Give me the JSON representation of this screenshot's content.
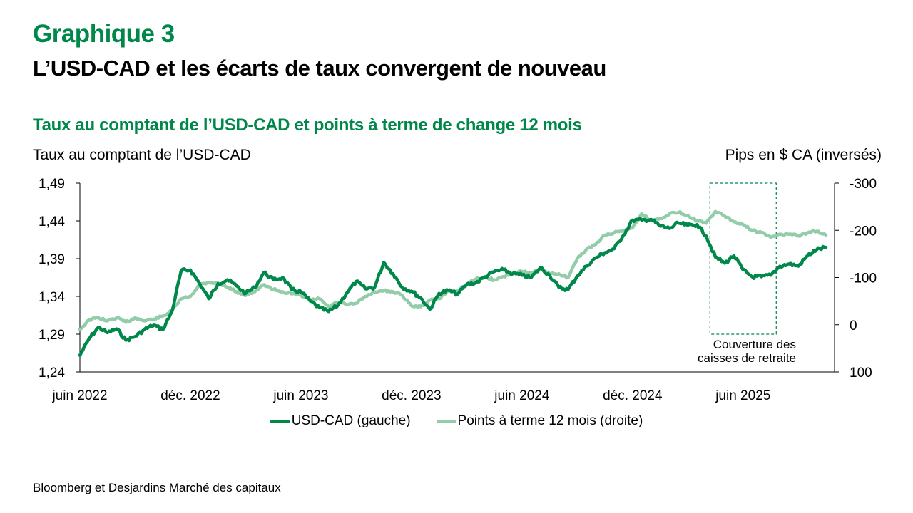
{
  "header": {
    "graph_number": "Graphique 3",
    "headline": "L’USD-CAD et les écarts de taux convergent de nouveau"
  },
  "source": "Bloomberg et Desjardins Marché des capitaux",
  "colors": {
    "title_green": "#00874a",
    "usdcad": "#00874a",
    "forward_points": "#92cca9",
    "annotation_box": "#00874a"
  },
  "chart_data": {
    "type": "line",
    "title": "Taux au comptant de l’USD-CAD et points à terme de change 12 mois",
    "ylabel": "Taux au comptant de l’USD-CAD",
    "ylabel_right": "Pips en $ CA (inversés)",
    "xlabel": "",
    "ylim": [
      1.24,
      1.49
    ],
    "ylim_right": [
      100,
      -300
    ],
    "right_axis_inverted": true,
    "yticks": [
      "1,49",
      "1,44",
      "1,39",
      "1,34",
      "1,29",
      "1,24"
    ],
    "yticks_values": [
      1.49,
      1.44,
      1.39,
      1.34,
      1.29,
      1.24
    ],
    "yticks_right": [
      "-300",
      "-200",
      "-100",
      "0",
      "100"
    ],
    "yticks_right_values": [
      -300,
      -200,
      -100,
      0,
      100
    ],
    "xticks": [
      "juin 2022",
      "déc. 2022",
      "juin 2023",
      "déc. 2023",
      "juin 2024",
      "déc. 2024",
      "juin 2025"
    ],
    "xticks_months": [
      0,
      6,
      12,
      18,
      24,
      30,
      36
    ],
    "x_unit": "months since June 2022",
    "x_range": [
      0,
      40.5
    ],
    "grid": false,
    "legend_position": "bottom",
    "annotation": {
      "text_line1": "Couverture des",
      "text_line2": "caisses de retraite",
      "x_start": 34.2,
      "x_end": 37.8,
      "y_top": 1.49,
      "y_bottom": 1.29
    },
    "x": [
      0,
      0.5,
      1,
      1.5,
      2,
      2.5,
      3,
      3.5,
      4,
      4.5,
      5,
      5.5,
      6,
      6.5,
      7,
      7.5,
      8,
      8.5,
      9,
      9.5,
      10,
      10.5,
      11,
      11.5,
      12,
      12.5,
      13,
      13.5,
      14,
      14.5,
      15,
      15.5,
      16,
      16.5,
      17,
      17.5,
      18,
      18.5,
      19,
      19.5,
      20,
      20.5,
      21,
      21.5,
      22,
      22.5,
      23,
      23.5,
      24,
      24.5,
      25,
      25.5,
      26,
      26.5,
      27,
      27.5,
      28,
      28.5,
      29,
      29.5,
      30,
      30.5,
      31,
      31.5,
      32,
      32.5,
      33,
      33.5,
      34,
      34.5,
      35,
      35.5,
      36,
      36.5,
      37,
      37.5,
      38,
      38.5,
      39,
      39.5,
      40,
      40.5
    ],
    "series": [
      {
        "name": "USD-CAD (gauche)",
        "axis": "left",
        "values": [
          1.262,
          1.284,
          1.299,
          1.292,
          1.297,
          1.282,
          1.287,
          1.296,
          1.302,
          1.296,
          1.32,
          1.374,
          1.375,
          1.357,
          1.337,
          1.357,
          1.362,
          1.354,
          1.344,
          1.352,
          1.372,
          1.362,
          1.365,
          1.349,
          1.346,
          1.334,
          1.325,
          1.32,
          1.328,
          1.345,
          1.36,
          1.35,
          1.352,
          1.385,
          1.37,
          1.352,
          1.347,
          1.338,
          1.323,
          1.344,
          1.348,
          1.343,
          1.356,
          1.358,
          1.366,
          1.373,
          1.375,
          1.37,
          1.368,
          1.365,
          1.378,
          1.368,
          1.352,
          1.349,
          1.367,
          1.38,
          1.391,
          1.398,
          1.403,
          1.421,
          1.441,
          1.441,
          1.442,
          1.433,
          1.43,
          1.437,
          1.434,
          1.435,
          1.42,
          1.392,
          1.384,
          1.394,
          1.375,
          1.366,
          1.366,
          1.368,
          1.38,
          1.383,
          1.38,
          1.394,
          1.402,
          1.405
        ]
      },
      {
        "name": "Points à terme 12 mois (droite)",
        "axis": "right",
        "values": [
          10,
          -10,
          -15,
          -8,
          -15,
          -5,
          -15,
          -8,
          -12,
          -18,
          -30,
          -55,
          -60,
          -85,
          -90,
          -88,
          -80,
          -70,
          -62,
          -70,
          -85,
          -75,
          -70,
          -65,
          -62,
          -52,
          -55,
          -38,
          -48,
          -42,
          -45,
          -60,
          -70,
          -72,
          -70,
          -62,
          -40,
          -38,
          -52,
          -55,
          -72,
          -72,
          -85,
          -97,
          -100,
          -95,
          -102,
          -110,
          -113,
          -108,
          -118,
          -108,
          -108,
          -100,
          -140,
          -160,
          -170,
          -190,
          -195,
          -200,
          -205,
          -235,
          -220,
          -225,
          -235,
          -238,
          -232,
          -220,
          -215,
          -240,
          -230,
          -218,
          -212,
          -200,
          -195,
          -185,
          -192,
          -192,
          -188,
          -195,
          -198,
          -190
        ]
      }
    ]
  }
}
